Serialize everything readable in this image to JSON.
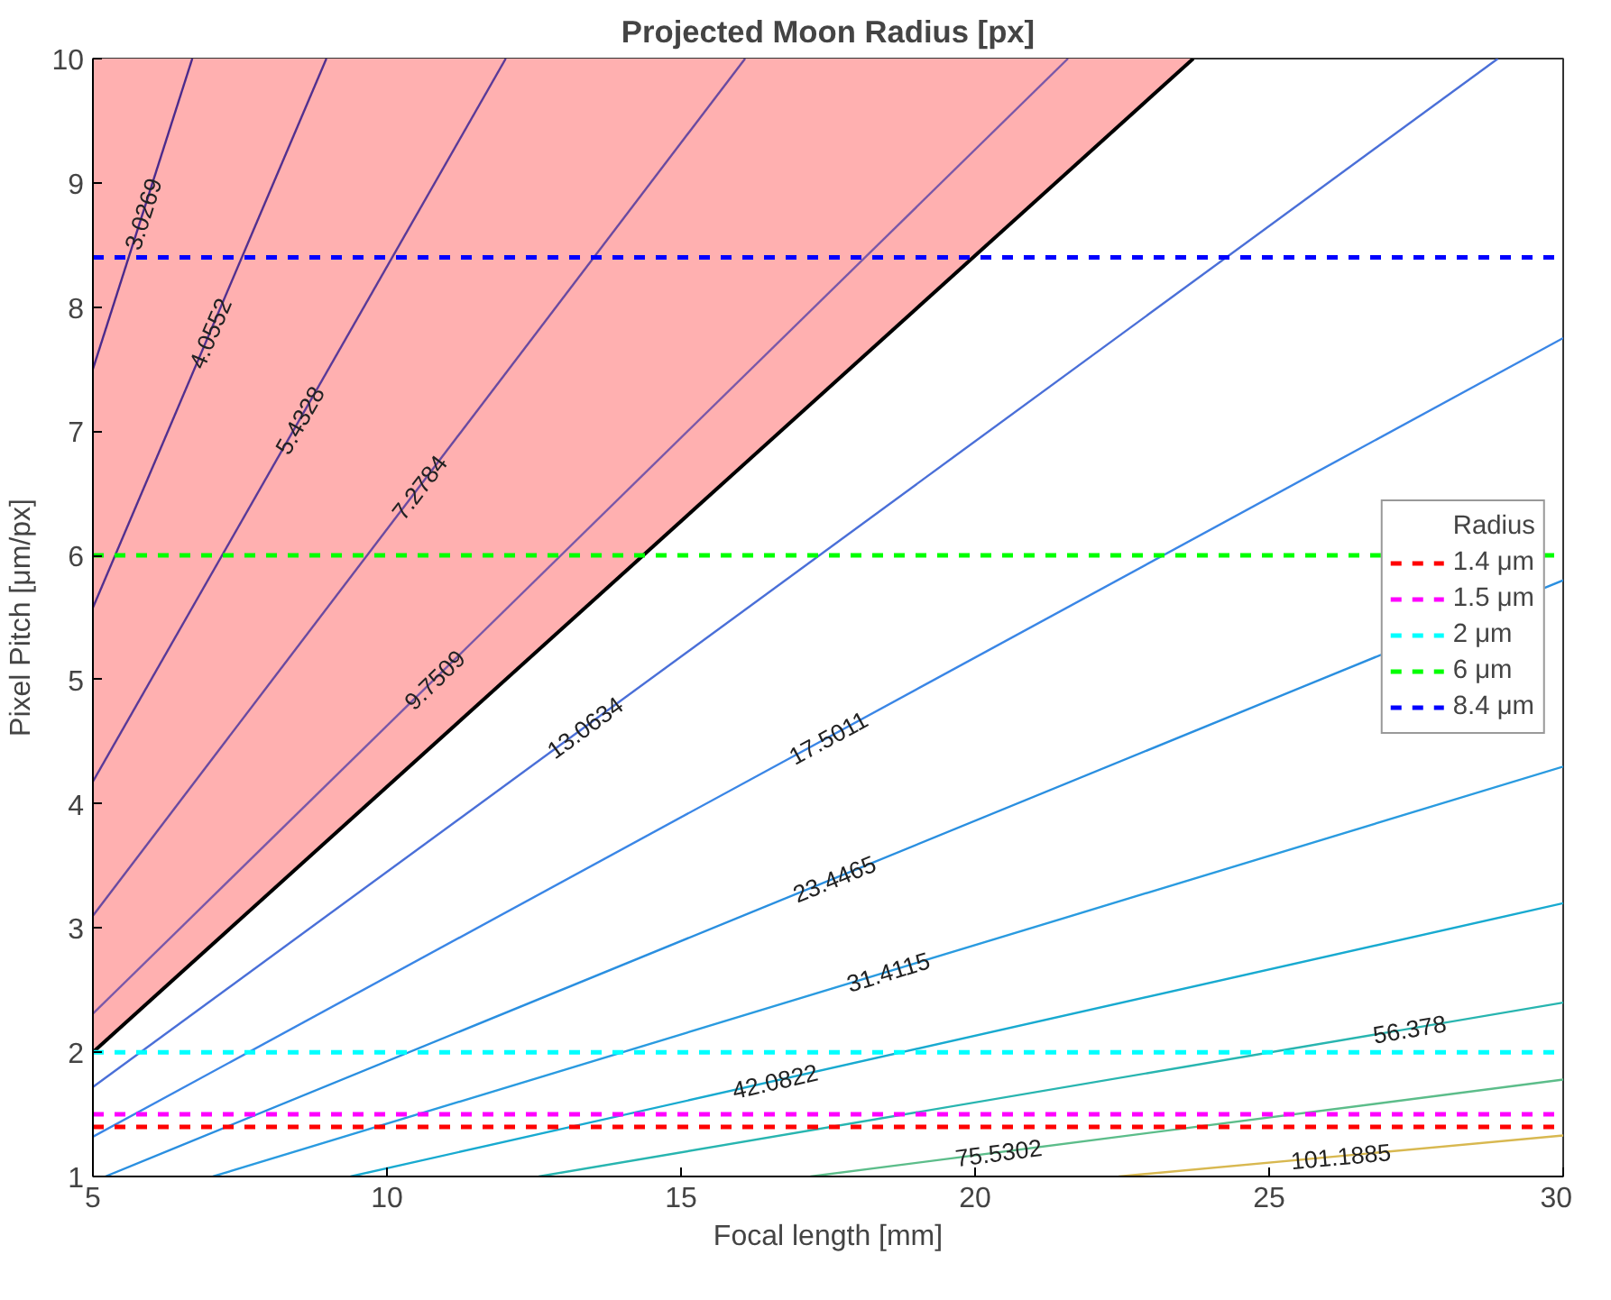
{
  "chart_data": {
    "type": "line",
    "title": "Projected Moon Radius [px]",
    "xlabel": "Focal length [mm]",
    "ylabel": "Pixel Pitch [μm/px]",
    "legend_title": "Radius",
    "xlim": [
      5,
      30
    ],
    "ylim": [
      1,
      10
    ],
    "xticks": [
      5,
      10,
      15,
      20,
      25,
      30
    ],
    "yticks": [
      1,
      2,
      3,
      4,
      5,
      6,
      7,
      8,
      9,
      10
    ],
    "grid": false,
    "legend": "right",
    "line_style": "solid",
    "marker": "none",
    "series": [
      {
        "type": "area",
        "color": "#ffb0b0",
        "x": [
          5,
          23.71
        ],
        "values": [
          2,
          10
        ]
      },
      {
        "name": "3.0269",
        "color": "#4b2a8c",
        "x": [
          5,
          6.69
        ],
        "values": [
          7.5,
          10
        ]
      },
      {
        "name": "4.0552",
        "color": "#52308f",
        "x": [
          5,
          8.97
        ],
        "values": [
          5.58,
          10
        ]
      },
      {
        "name": "5.4328",
        "color": "#5a3a98",
        "x": [
          5,
          12.02
        ],
        "values": [
          4.18,
          10
        ]
      },
      {
        "name": "7.2784",
        "color": "#6a4aa0",
        "x": [
          5,
          16.09
        ],
        "values": [
          3.1,
          10
        ]
      },
      {
        "name": "9.7509",
        "color": "#7a58a8",
        "x": [
          5,
          21.58
        ],
        "values": [
          2.31,
          10
        ]
      },
      {
        "name": "13.0634",
        "color": "#4a6fd8",
        "x": [
          5,
          28.89
        ],
        "values": [
          1.72,
          10
        ]
      },
      {
        "name": "17.5011",
        "color": "#3a86e6",
        "x": [
          5,
          30
        ],
        "values": [
          1.32,
          7.75
        ]
      },
      {
        "name": "23.4465",
        "color": "#2a8fe0",
        "x": [
          5.21,
          30
        ],
        "values": [
          1,
          5.8
        ]
      },
      {
        "name": "31.4115",
        "color": "#2a9be0",
        "x": [
          7.04,
          30
        ],
        "values": [
          1,
          4.3
        ]
      },
      {
        "name": "42.0822",
        "color": "#18aad0",
        "x": [
          9.38,
          30
        ],
        "values": [
          1,
          3.2
        ]
      },
      {
        "name": "56.378",
        "color": "#28b5b0",
        "x": [
          12.58,
          30
        ],
        "values": [
          1,
          2.4
        ]
      },
      {
        "name": "75.5302",
        "color": "#5cbd8a",
        "x": [
          17.2,
          30
        ],
        "values": [
          1,
          1.78
        ]
      },
      {
        "name": "101.1885",
        "color": "#d8b850",
        "x": [
          22.44,
          30
        ],
        "values": [
          1,
          1.33
        ]
      }
    ],
    "ref_lines": [
      {
        "axis": "y",
        "value": 1.4,
        "label": "1.4 μm",
        "color": "#ff0000",
        "line_style": "dashed"
      },
      {
        "axis": "y",
        "value": 1.5,
        "label": "1.5 μm",
        "color": "#ff00ff",
        "line_style": "dashed"
      },
      {
        "axis": "y",
        "value": 2,
        "label": "2 μm",
        "color": "#00ffff",
        "line_style": "dashed"
      },
      {
        "axis": "y",
        "value": 6,
        "label": "6 μm",
        "color": "#00ff00",
        "line_style": "dashed"
      },
      {
        "axis": "y",
        "value": 8.4,
        "label": "8.4 μm",
        "color": "#0000ff",
        "line_style": "dashed"
      }
    ]
  }
}
